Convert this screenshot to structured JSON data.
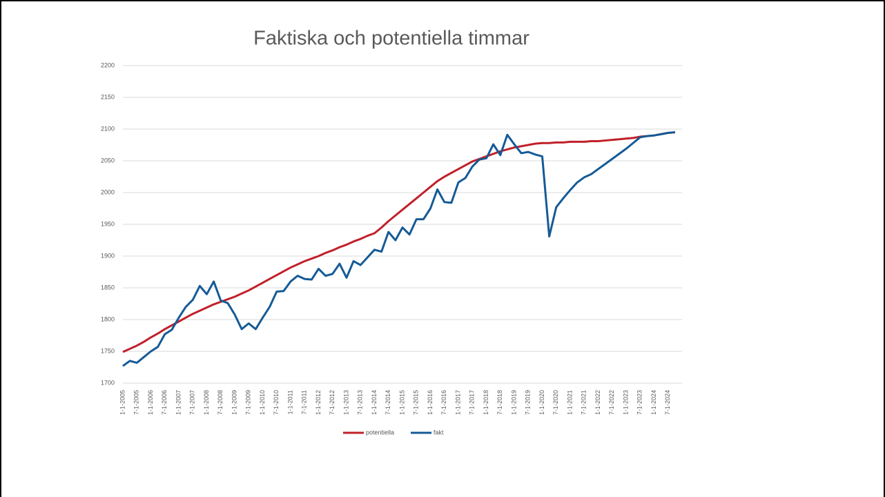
{
  "chart_data": {
    "type": "line",
    "title": "Faktiska och potentiella timmar",
    "categories": [
      "1-1-2005",
      null,
      "7-1-2005",
      null,
      "1-1-2006",
      null,
      "7-1-2006",
      null,
      "1-1-2007",
      null,
      "7-1-2007",
      null,
      "1-1-2008",
      null,
      "7-1-2008",
      null,
      "1-1-2009",
      null,
      "7-1-2009",
      null,
      "1-1-2010",
      null,
      "7-1-2010",
      null,
      "1-1-2011",
      null,
      "7-1-2011",
      null,
      "1-1-2012",
      null,
      "7-1-2012",
      null,
      "1-1-2013",
      null,
      "7-1-2013",
      null,
      "1-1-2014",
      null,
      "7-1-2014",
      null,
      "1-1-2015",
      null,
      "7-1-2015",
      null,
      "1-1-2016",
      null,
      "7-1-2016",
      null,
      "1-1-2017",
      null,
      "7-1-2017",
      null,
      "1-1-2018",
      null,
      "7-1-2018",
      null,
      "1-1-2019",
      null,
      "7-1-2019",
      null,
      "1-1-2020",
      null,
      "7-1-2020",
      null,
      "1-1-2021",
      null,
      "7-1-2021",
      null,
      "1-1-2022",
      null,
      "7-1-2022",
      null,
      "1-1-2023",
      null,
      "7-1-2023",
      null,
      "1-1-2024",
      null,
      "7-1-2024",
      null
    ],
    "series": [
      {
        "name": "potentiella",
        "color": "#c0202a",
        "values": [
          1749,
          1754,
          1759,
          1765,
          1772,
          1778,
          1785,
          1791,
          1797,
          1803,
          1809,
          1814,
          1819,
          1824,
          1828,
          1832,
          1836,
          1841,
          1846,
          1852,
          1858,
          1864,
          1870,
          1876,
          1882,
          1887,
          1892,
          1896,
          1900,
          1905,
          1909,
          1914,
          1918,
          1923,
          1927,
          1932,
          1936,
          1945,
          1955,
          1964,
          1973,
          1982,
          1991,
          2000,
          2009,
          2018,
          2025,
          2031,
          2037,
          2043,
          2049,
          2053,
          2057,
          2061,
          2065,
          2068,
          2071,
          2073,
          2075,
          2077,
          2078,
          2078,
          2079,
          2079,
          2080,
          2080,
          2080,
          2081,
          2081,
          2082,
          2083,
          2084,
          2085,
          2086,
          2088,
          2089,
          2090,
          2092,
          2094,
          2095
        ]
      },
      {
        "name": "fakt",
        "color": "#155a96",
        "values": [
          1727,
          1735,
          1732,
          1741,
          1750,
          1757,
          1777,
          1784,
          1803,
          1820,
          1831,
          1853,
          1840,
          1860,
          1830,
          1826,
          1808,
          1785,
          1794,
          1785,
          1803,
          1820,
          1844,
          1845,
          1860,
          1869,
          1864,
          1863,
          1880,
          1869,
          1872,
          1888,
          1866,
          1892,
          1886,
          1898,
          1910,
          1907,
          1938,
          1925,
          1945,
          1934,
          1958,
          1958,
          1975,
          2005,
          1985,
          1984,
          2016,
          2023,
          2041,
          2052,
          2054,
          2076,
          2059,
          2091,
          2076,
          2062,
          2064,
          2060,
          2057,
          1931,
          1977,
          1991,
          2004,
          2016,
          2024,
          2029,
          2037,
          2045,
          2053,
          2061,
          2069,
          2078,
          2087,
          2089,
          2090,
          2092,
          2094,
          2095
        ]
      }
    ],
    "ylim": [
      1700,
      2200
    ],
    "yticks": [
      1700,
      1750,
      1800,
      1850,
      1900,
      1950,
      2000,
      2050,
      2100,
      2150,
      2200
    ],
    "grid": true
  }
}
